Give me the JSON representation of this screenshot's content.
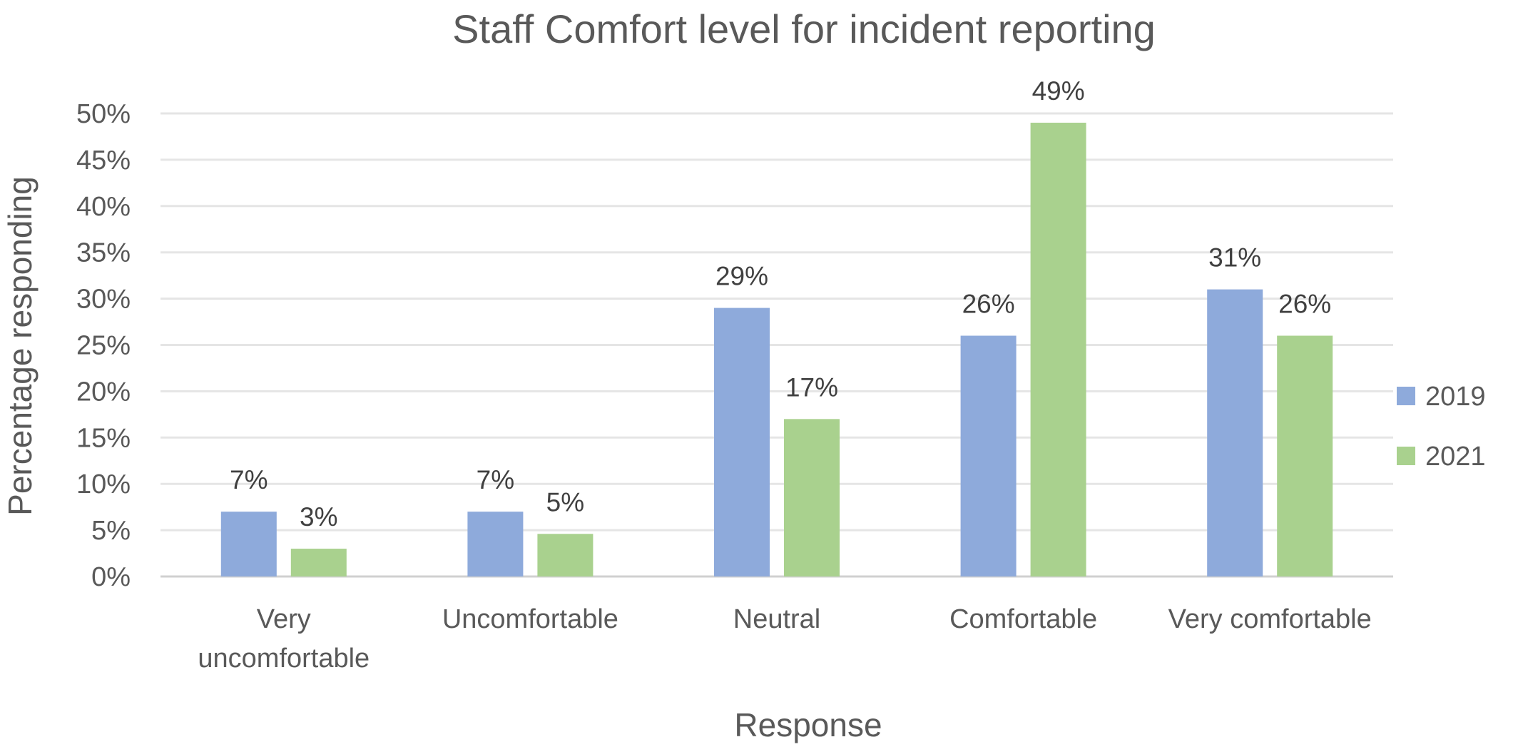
{
  "chart_data": {
    "type": "bar",
    "title": "Staff Comfort level for incident reporting",
    "xlabel": "Response",
    "ylabel": "Percentage responding",
    "categories": [
      [
        "Very",
        "uncomfortable"
      ],
      [
        "Uncomfortable"
      ],
      [
        "Neutral"
      ],
      [
        "Comfortable"
      ],
      [
        "Very comfortable"
      ]
    ],
    "series": [
      {
        "name": "2019",
        "color": "#8eaadb",
        "values": [
          7,
          7,
          29,
          26,
          31
        ],
        "labels": [
          "7%",
          "7%",
          "29%",
          "26%",
          "31%"
        ]
      },
      {
        "name": "2021",
        "color": "#a9d18e",
        "values": [
          3,
          4.6,
          17,
          49,
          26
        ],
        "labels": [
          "3%",
          "5%",
          "17%",
          "49%",
          "26%"
        ]
      }
    ],
    "ylim": [
      0,
      50
    ],
    "yticks": [
      0,
      5,
      10,
      15,
      20,
      25,
      30,
      35,
      40,
      45,
      50
    ],
    "ytick_labels": [
      "0%",
      "5%",
      "10%",
      "15%",
      "20%",
      "25%",
      "30%",
      "35%",
      "40%",
      "45%",
      "50%"
    ],
    "grid": true,
    "legend": "right"
  }
}
